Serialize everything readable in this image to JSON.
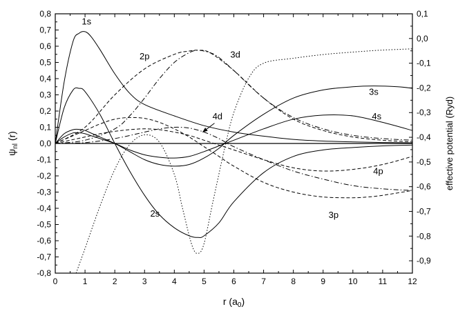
{
  "chart_data": {
    "type": "line",
    "xlabel": "r (a",
    "xlabel_sub": "0",
    "xlabel_end": ")",
    "ylabel": "ψ",
    "ylabel_sub": "nl",
    "ylabel_end": " (r)",
    "y2label": "effective potential (Ryd)",
    "xlim": [
      0,
      12
    ],
    "ylim": [
      -0.8,
      0.8
    ],
    "y2lim": [
      -0.95,
      0.1
    ],
    "x_ticks": [
      "0",
      "1",
      "2",
      "3",
      "4",
      "5",
      "6",
      "7",
      "8",
      "9",
      "10",
      "11",
      "12"
    ],
    "y_ticks": [
      "0,8",
      "0,7",
      "0,6",
      "0,5",
      "0,4",
      "0,3",
      "0,2",
      "0,1",
      "0,0",
      "-0,1",
      "-0,2",
      "-0,3",
      "-0,4",
      "-0,5",
      "-0,6",
      "-0,7",
      "-0,8"
    ],
    "y2_ticks": [
      "0,1",
      "0,0",
      "-0,1",
      "-0,2",
      "-0,3",
      "-0,4",
      "-0,5",
      "-0,6",
      "-0,7",
      "-0,8",
      "-0,9"
    ],
    "grid": false,
    "series": [
      {
        "name": "1s",
        "style": "solid",
        "axis": "left",
        "x": [
          0,
          0.3,
          0.6,
          0.8,
          1.0,
          1.2,
          1.5,
          2,
          2.5,
          3,
          4,
          5,
          6,
          7,
          8,
          9,
          10,
          11,
          12
        ],
        "y": [
          0,
          0.38,
          0.63,
          0.68,
          0.69,
          0.66,
          0.58,
          0.43,
          0.31,
          0.24,
          0.17,
          0.11,
          0.07,
          0.045,
          0.025,
          0.015,
          0.01,
          0.006,
          0.004
        ]
      },
      {
        "name": "2s",
        "style": "solid",
        "axis": "left",
        "x": [
          0,
          0.3,
          0.6,
          0.8,
          1.0,
          1.5,
          2,
          2.5,
          3,
          3.5,
          4,
          4.5,
          4.8,
          5,
          5.5,
          6,
          7,
          8,
          9,
          10,
          11,
          12
        ],
        "y": [
          0,
          0.22,
          0.33,
          0.34,
          0.32,
          0.18,
          0.0,
          -0.17,
          -0.32,
          -0.44,
          -0.52,
          -0.57,
          -0.58,
          -0.57,
          -0.49,
          -0.36,
          -0.18,
          -0.08,
          -0.04,
          -0.025,
          -0.015,
          -0.01
        ]
      },
      {
        "name": "3s",
        "style": "solid",
        "axis": "left",
        "x": [
          0,
          0.3,
          0.6,
          0.8,
          1.0,
          1.5,
          2,
          2.5,
          3,
          3.5,
          4,
          4.5,
          5,
          5.5,
          6,
          7,
          8,
          9,
          10,
          10.7,
          11.5,
          12
        ],
        "y": [
          0,
          0.06,
          0.085,
          0.087,
          0.08,
          0.04,
          0.0,
          -0.05,
          -0.1,
          -0.13,
          -0.14,
          -0.13,
          -0.09,
          -0.03,
          0.05,
          0.18,
          0.28,
          0.33,
          0.35,
          0.355,
          0.35,
          0.34
        ]
      },
      {
        "name": "4s",
        "style": "solid",
        "axis": "left",
        "x": [
          0,
          0.3,
          0.6,
          0.8,
          1.0,
          1.5,
          2,
          2.5,
          3,
          3.5,
          4,
          4.5,
          5,
          5.5,
          6,
          7,
          8,
          9,
          10,
          11,
          12
        ],
        "y": [
          0,
          0.04,
          0.065,
          0.065,
          0.06,
          0.03,
          0.0,
          -0.04,
          -0.07,
          -0.085,
          -0.09,
          -0.08,
          -0.05,
          -0.015,
          0.02,
          0.09,
          0.15,
          0.175,
          0.17,
          0.13,
          0.08
        ]
      },
      {
        "name": "2p",
        "style": "dashed",
        "axis": "left",
        "x": [
          0,
          1,
          2,
          3,
          4,
          4.5,
          4.8,
          5.2,
          6,
          7,
          8,
          9,
          10,
          11,
          12
        ],
        "y": [
          0,
          0.1,
          0.3,
          0.46,
          0.55,
          0.57,
          0.575,
          0.56,
          0.45,
          0.28,
          0.15,
          0.08,
          0.04,
          0.02,
          0.01
        ]
      },
      {
        "name": "3p",
        "style": "dashed",
        "axis": "left",
        "x": [
          0,
          0.5,
          1,
          1.5,
          2,
          2.5,
          3,
          3.5,
          4,
          4.5,
          5,
          5.5,
          6,
          7,
          8,
          9,
          10,
          10.5,
          11,
          12
        ],
        "y": [
          0,
          0.04,
          0.08,
          0.12,
          0.15,
          0.16,
          0.155,
          0.13,
          0.09,
          0.04,
          -0.02,
          -0.08,
          -0.14,
          -0.24,
          -0.3,
          -0.33,
          -0.335,
          -0.33,
          -0.32,
          -0.29
        ]
      },
      {
        "name": "4p",
        "style": "dashed",
        "axis": "left",
        "x": [
          0,
          0.5,
          1,
          1.5,
          2,
          2.5,
          3,
          3.5,
          4,
          4.5,
          5,
          5.5,
          6,
          7,
          8,
          9,
          10,
          11,
          12
        ],
        "y": [
          0,
          0.02,
          0.04,
          0.06,
          0.075,
          0.085,
          0.09,
          0.085,
          0.07,
          0.05,
          0.02,
          -0.01,
          -0.04,
          -0.1,
          -0.15,
          -0.17,
          -0.16,
          -0.13,
          -0.08
        ]
      },
      {
        "name": "3d",
        "style": "dashdot",
        "axis": "left",
        "x": [
          0,
          1,
          2,
          2.5,
          3,
          3.5,
          4,
          4.5,
          4.8,
          5.2,
          5.5,
          6,
          7,
          8,
          9,
          10,
          11,
          12
        ],
        "y": [
          0,
          0.02,
          0.09,
          0.17,
          0.28,
          0.4,
          0.5,
          0.56,
          0.575,
          0.56,
          0.53,
          0.45,
          0.28,
          0.16,
          0.09,
          0.05,
          0.03,
          0.02
        ]
      },
      {
        "name": "4d",
        "style": "dashdot",
        "axis": "left",
        "x": [
          0,
          1,
          2,
          3,
          3.5,
          4,
          4.5,
          5,
          5.5,
          6,
          7,
          8,
          9,
          10,
          11,
          12
        ],
        "y": [
          0,
          0.005,
          0.03,
          0.07,
          0.09,
          0.1,
          0.095,
          0.07,
          0.03,
          -0.02,
          -0.1,
          -0.17,
          -0.22,
          -0.26,
          -0.28,
          -0.29
        ]
      },
      {
        "name": "",
        "style": "dotted",
        "axis": "right",
        "x": [
          0.7,
          1,
          1.5,
          2,
          2.5,
          3,
          3.5,
          4,
          4.3,
          4.6,
          4.8,
          5,
          5.3,
          5.7,
          6,
          6.5,
          7,
          8,
          9,
          10,
          11,
          12
        ],
        "y": [
          -0.95,
          -0.85,
          -0.68,
          -0.53,
          -0.43,
          -0.39,
          -0.42,
          -0.55,
          -0.7,
          -0.84,
          -0.87,
          -0.83,
          -0.66,
          -0.44,
          -0.3,
          -0.16,
          -0.1,
          -0.08,
          -0.065,
          -0.055,
          -0.047,
          -0.042
        ]
      }
    ],
    "annotations": [
      {
        "text": "1s",
        "x": 1.05,
        "y": 0.735
      },
      {
        "text": "2p",
        "x": 3.0,
        "y": 0.52
      },
      {
        "text": "3d",
        "x": 6.05,
        "y": 0.53
      },
      {
        "text": "3s",
        "x": 10.7,
        "y": 0.3
      },
      {
        "text": "4d",
        "x": 5.45,
        "y": 0.15
      },
      {
        "text": "4s",
        "x": 10.8,
        "y": 0.15
      },
      {
        "text": "4p",
        "x": 10.85,
        "y": -0.19
      },
      {
        "text": "3p",
        "x": 9.35,
        "y": -0.46
      },
      {
        "text": "2s",
        "x": 3.35,
        "y": -0.45
      }
    ]
  }
}
